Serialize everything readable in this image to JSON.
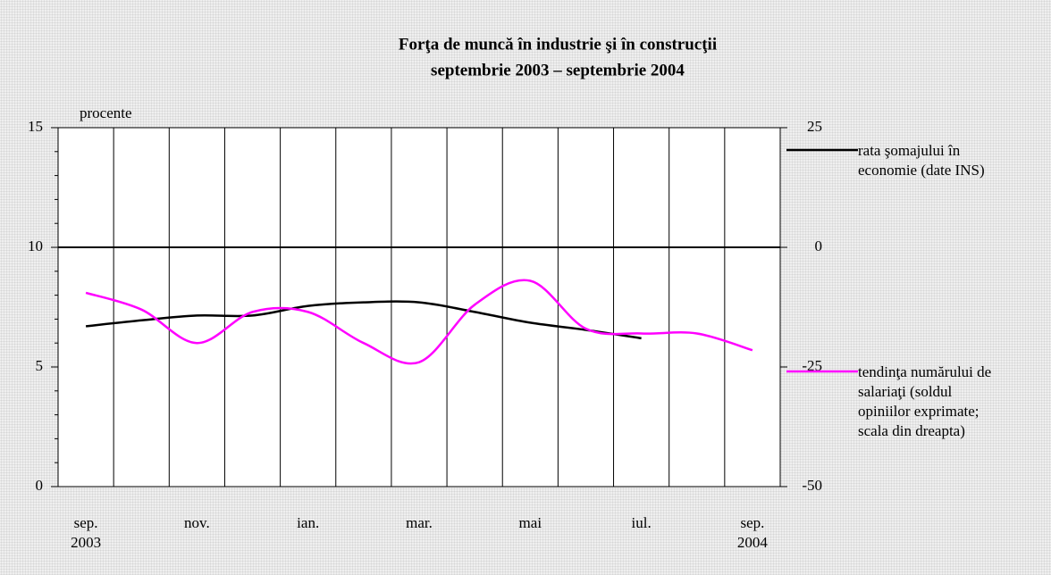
{
  "chart_data": {
    "type": "line",
    "title": "Forţa de muncă în industrie şi în construcţii",
    "subtitle": "septembrie 2003 – septembrie 2004",
    "y_label": "procente",
    "categories": [
      "sep. 2003",
      null,
      "nov.",
      null,
      "ian.",
      null,
      "mar.",
      null,
      "mai",
      null,
      "iul.",
      null,
      "sep. 2004"
    ],
    "ylim": [
      0,
      15
    ],
    "yticks": [
      0,
      5,
      10,
      15
    ],
    "y2lim": [
      -50,
      25
    ],
    "y2ticks": [
      -50,
      -25,
      0,
      25
    ],
    "series": [
      {
        "name": "rata şomajului în economie (date INS)",
        "color": "#000000",
        "values": [
          6.7,
          6.95,
          7.15,
          7.15,
          7.55,
          7.7,
          7.7,
          7.3,
          6.85,
          6.55,
          6.2,
          null,
          null
        ]
      },
      {
        "name": "tendinţa numărului de salariaţi (soldul opiniilor exprimate; scala din dreapta)",
        "color": "#ff00ff",
        "axis": "y2",
        "values": [
          -9.5,
          -13,
          -20,
          -13.5,
          -13.5,
          -20,
          -24,
          -12,
          -7,
          -17,
          -18,
          -18,
          -21.5
        ]
      }
    ]
  }
}
